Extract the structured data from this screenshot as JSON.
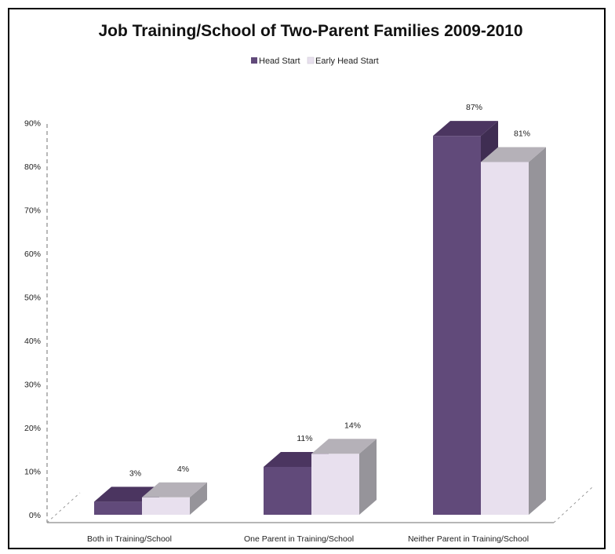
{
  "chart_data": {
    "type": "bar",
    "title": "Job Training/School of Two-Parent Families 2009-2010",
    "xlabel": "",
    "ylabel": "",
    "ylim": [
      0,
      90
    ],
    "yticks": [
      "0%",
      "10%",
      "20%",
      "30%",
      "40%",
      "50%",
      "60%",
      "70%",
      "80%",
      "90%"
    ],
    "categories": [
      "Both in Training/School",
      "One Parent in Training/School",
      "Neither Parent in Training/School"
    ],
    "series": [
      {
        "name": "Head Start",
        "values": [
          3,
          11,
          87
        ],
        "labels": [
          "3%",
          "11%",
          "87%"
        ],
        "color": "#614a7a",
        "top_color": "#4b3560",
        "side_color": "#3f2d52"
      },
      {
        "name": "Early Head Start",
        "values": [
          4,
          14,
          81
        ],
        "labels": [
          "4%",
          "14%",
          "81%"
        ],
        "color": "#e8e0ee",
        "top_color": "#b5b1b8",
        "side_color": "#96949a"
      }
    ],
    "legend_position": "top-center",
    "grid": false,
    "style": "3d-clustered-column"
  }
}
